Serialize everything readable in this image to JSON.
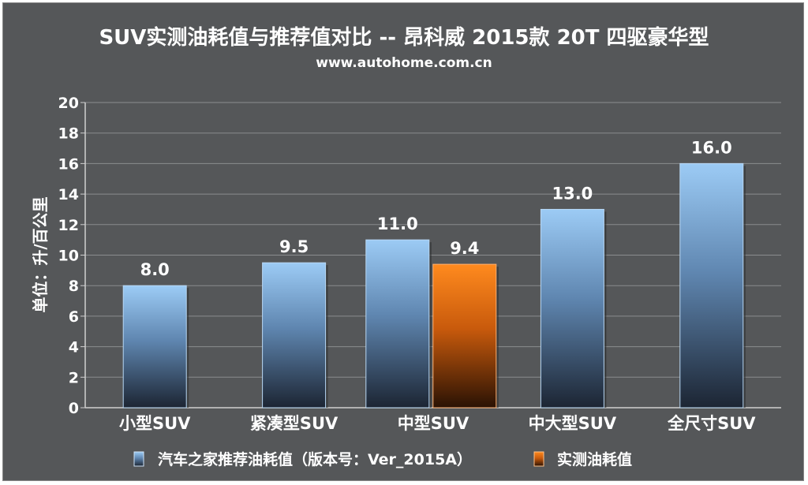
{
  "chart_data": {
    "type": "bar",
    "title": "SUV实测油耗值与推荐值对比 -- 昂科威 2015款 20T 四驱豪华型",
    "subtitle": "www.autohome.com.cn",
    "ylabel": "单位：升/百公里",
    "xlabel": "",
    "ylim": [
      0,
      20
    ],
    "ytick_step": 2,
    "yticks": [
      "0",
      "2",
      "4",
      "6",
      "8",
      "10",
      "12",
      "14",
      "16",
      "18",
      "20"
    ],
    "grid": true,
    "legend_position": "bottom",
    "categories": [
      "小型SUV",
      "紧凑型SUV",
      "中型SUV",
      "中大型SUV",
      "全尺寸SUV"
    ],
    "series": [
      {
        "name": "汽车之家推荐油耗值（版本号：Ver_2015A）",
        "color_top": "#9ccbf5",
        "color_bottom": "#1c2533",
        "values": [
          8.0,
          9.5,
          11.0,
          13.0,
          16.0
        ],
        "labels": [
          "8.0",
          "9.5",
          "11.0",
          "13.0",
          "16.0"
        ]
      },
      {
        "name": "实测油耗值",
        "color_top": "#ff8a1e",
        "color_bottom": "#2a1204",
        "values": [
          null,
          null,
          9.4,
          null,
          null
        ],
        "labels": [
          "",
          "",
          "9.4",
          "",
          ""
        ]
      }
    ]
  }
}
